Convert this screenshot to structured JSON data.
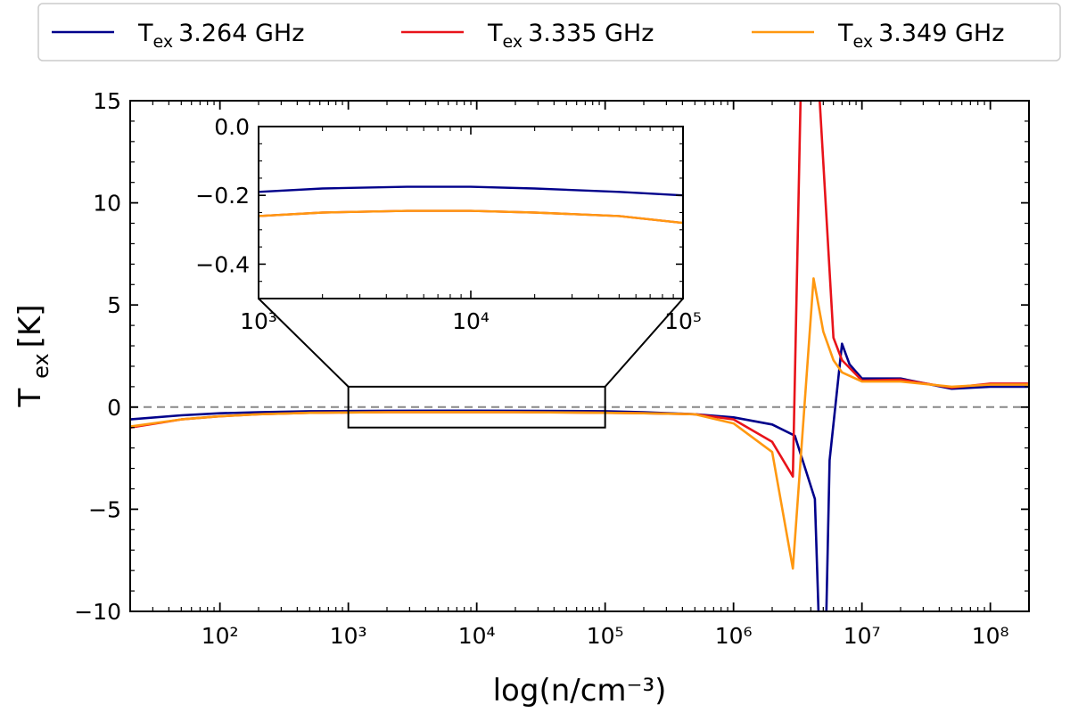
{
  "chart_data": {
    "type": "line",
    "xscale": "log",
    "xlabel": "log(n/cm⁻³)",
    "ylabel": "T_ex [K]",
    "xlim": [
      20,
      200000000
    ],
    "ylim": [
      -10,
      15
    ],
    "y_ticks": [
      -10,
      -5,
      0,
      5,
      10,
      15
    ],
    "x_ticks": [
      {
        "exp": 2,
        "label": "10²"
      },
      {
        "exp": 3,
        "label": "10³"
      },
      {
        "exp": 4,
        "label": "10⁴"
      },
      {
        "exp": 5,
        "label": "10⁵"
      },
      {
        "exp": 6,
        "label": "10⁶"
      },
      {
        "exp": 7,
        "label": "10⁷"
      },
      {
        "exp": 8,
        "label": "10⁸"
      }
    ],
    "reference_line": {
      "y": 0,
      "style": "dashed",
      "color": "#888888"
    },
    "zoom_box": {
      "x": [
        1000,
        100000
      ],
      "y": [
        -1,
        1
      ]
    },
    "legend": {
      "placement": "top, outside plot"
    },
    "series": [
      {
        "name": "3.264 GHz",
        "legend_prefix": "T",
        "legend_sub": "ex",
        "legend_label": "3.264 GHz",
        "color": "#00008b",
        "x": [
          20,
          50,
          100,
          200,
          500,
          1000,
          2000,
          5000,
          10000,
          20000,
          50000,
          100000,
          200000,
          500000,
          1000000,
          2000000,
          3000000,
          4300000,
          4700000,
          5200000,
          5600000,
          7000000,
          8000000,
          10000000,
          20000000,
          50000000,
          100000000,
          200000000
        ],
        "y": [
          -0.6,
          -0.4,
          -0.3,
          -0.25,
          -0.2,
          -0.19,
          -0.18,
          -0.175,
          -0.175,
          -0.18,
          -0.19,
          -0.2,
          -0.25,
          -0.35,
          -0.5,
          -0.85,
          -1.4,
          -4.5,
          -12,
          -12,
          -2.6,
          3.1,
          2.1,
          1.4,
          1.4,
          0.9,
          1.0,
          1.0
        ]
      },
      {
        "name": "3.335 GHz",
        "legend_prefix": "T",
        "legend_sub": "ex",
        "legend_label": "3.335 GHz",
        "color": "#e8131a",
        "x": [
          20,
          50,
          100,
          200,
          500,
          1000,
          2000,
          5000,
          10000,
          20000,
          50000,
          100000,
          200000,
          500000,
          1000000,
          2000000,
          2900000,
          3400000,
          4400000,
          5000000,
          6000000,
          7000000,
          10000000,
          20000000,
          50000000,
          100000000,
          200000000
        ],
        "y": [
          -1.0,
          -0.6,
          -0.45,
          -0.35,
          -0.28,
          -0.26,
          -0.25,
          -0.245,
          -0.245,
          -0.25,
          -0.26,
          -0.28,
          -0.3,
          -0.35,
          -0.6,
          -1.7,
          -3.4,
          18,
          18,
          12,
          3.4,
          2.3,
          1.3,
          1.35,
          0.95,
          1.15,
          1.15
        ]
      },
      {
        "name": "3.349 GHz",
        "legend_prefix": "T",
        "legend_sub": "ex",
        "legend_label": "3.349 GHz",
        "color": "#ff9810",
        "x": [
          20,
          50,
          100,
          200,
          500,
          1000,
          2000,
          5000,
          10000,
          20000,
          50000,
          100000,
          200000,
          500000,
          1000000,
          2000000,
          2900000,
          4200000,
          5000000,
          6000000,
          7000000,
          10000000,
          20000000,
          50000000,
          100000000,
          200000000
        ],
        "y": [
          -0.95,
          -0.6,
          -0.45,
          -0.35,
          -0.28,
          -0.26,
          -0.25,
          -0.245,
          -0.245,
          -0.25,
          -0.26,
          -0.28,
          -0.3,
          -0.35,
          -0.8,
          -2.2,
          -7.9,
          6.3,
          3.7,
          2.3,
          1.7,
          1.25,
          1.25,
          1.0,
          1.1,
          1.1
        ]
      }
    ],
    "inset": {
      "xscale": "log",
      "xlim": [
        1000,
        100000
      ],
      "ylim": [
        -0.5,
        0.0
      ],
      "y_ticks": [
        {
          "v": 0.0,
          "label": "0.0"
        },
        {
          "v": -0.2,
          "label": "−0.2"
        },
        {
          "v": -0.4,
          "label": "−0.4"
        }
      ],
      "x_ticks": [
        {
          "exp": 3,
          "label": "10³"
        },
        {
          "exp": 4,
          "label": "10⁴"
        },
        {
          "exp": 5,
          "label": "10⁵"
        }
      ]
    }
  }
}
